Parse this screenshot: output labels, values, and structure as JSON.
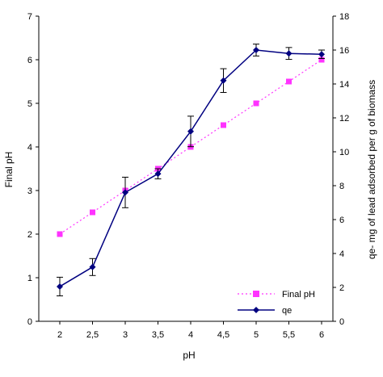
{
  "chart_data": {
    "type": "line",
    "xlabel": "pH",
    "x_ticks": [
      "2",
      "2,5",
      "3",
      "3,5",
      "4",
      "4,5",
      "5",
      "5,5",
      "6"
    ],
    "x": [
      2,
      2.5,
      3,
      3.5,
      4,
      4.5,
      5,
      5.5,
      6
    ],
    "y_left": {
      "label": "Final pH",
      "lim": [
        0,
        7
      ],
      "ticks": [
        0,
        1,
        2,
        3,
        4,
        5,
        6,
        7
      ]
    },
    "y_right": {
      "label": "qe- mg of lead adsorbed per g of biomass",
      "lim": [
        0,
        18
      ],
      "ticks": [
        0,
        2,
        4,
        6,
        8,
        10,
        12,
        14,
        16,
        18
      ]
    },
    "grid": false,
    "legend_position": "lower-right",
    "series": [
      {
        "name": "Final pH",
        "axis": "left",
        "color": "#ff33ff",
        "marker": "square",
        "line_style": "dotted",
        "values": [
          2.0,
          2.5,
          3.0,
          3.5,
          4.0,
          4.5,
          5.0,
          5.5,
          6.0
        ]
      },
      {
        "name": "qe",
        "axis": "right",
        "color": "#000080",
        "marker": "diamond",
        "line_style": "solid",
        "values": [
          2.05,
          3.2,
          7.6,
          8.7,
          11.2,
          14.2,
          16.0,
          15.8,
          15.75
        ],
        "errors": [
          0.55,
          0.5,
          0.9,
          0.3,
          0.9,
          0.7,
          0.35,
          0.35,
          0.25
        ]
      }
    ]
  }
}
